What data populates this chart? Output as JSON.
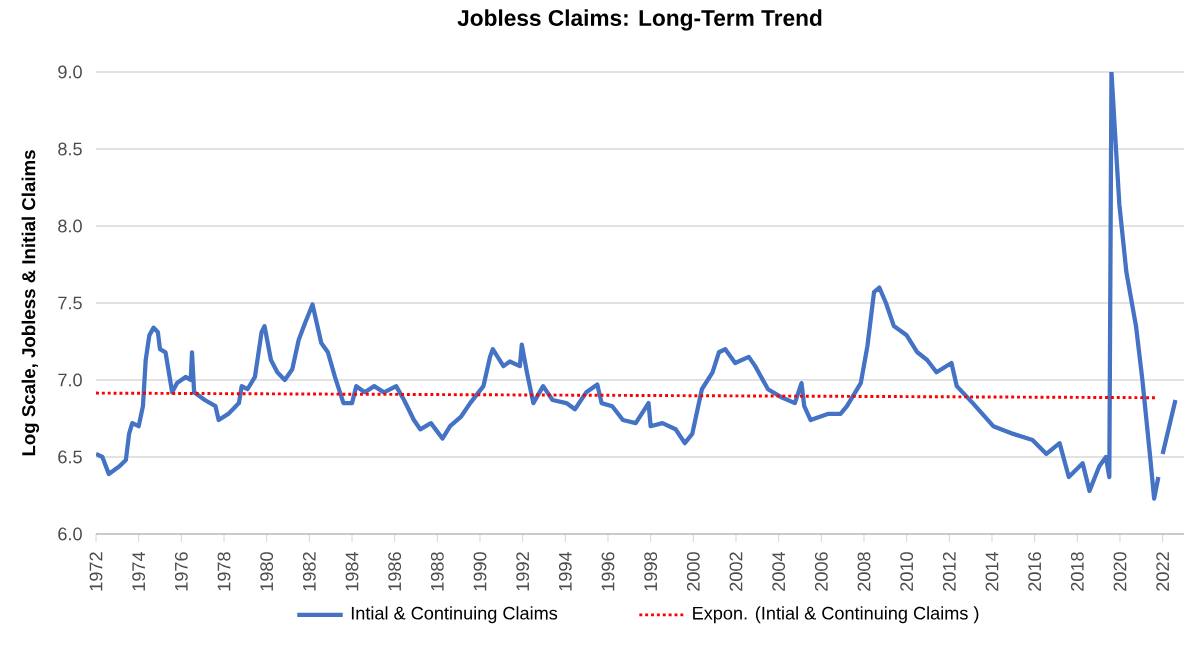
{
  "chart_data": {
    "type": "line",
    "title": "Jobless Claims: Long-Term Trend",
    "ylabel": "Log Scale, Jobless & Initial Claims",
    "xlim": [
      1972,
      2023
    ],
    "xticks": [
      1972,
      1974,
      1976,
      1978,
      1980,
      1982,
      1984,
      1986,
      1988,
      1990,
      1992,
      1994,
      1996,
      1998,
      2000,
      2002,
      2004,
      2006,
      2008,
      2010,
      2012,
      2014,
      2016,
      2018,
      2020,
      2022
    ],
    "ylim": [
      6.0,
      9.0
    ],
    "yticks": [
      {
        "value": 6.0,
        "label": "6.0"
      },
      {
        "value": 6.5,
        "label": "6.5"
      },
      {
        "value": 7.0,
        "label": "7.0"
      },
      {
        "value": 7.5,
        "label": "7.5"
      },
      {
        "value": 8.0,
        "label": "8.0"
      },
      {
        "value": 8.5,
        "label": "8.5"
      },
      {
        "value": 9.0,
        "label": "9.0"
      }
    ],
    "grid": "y",
    "legend": "bottom",
    "marker": "none",
    "series": [
      {
        "name": "Intial & Continuing Claims",
        "color": "#4472c4",
        "line_style": "solid",
        "x": [
          1972.0,
          1972.3,
          1972.6,
          1973.1,
          1973.4,
          1973.55,
          1973.7,
          1974.0,
          1974.2,
          1974.33,
          1974.5,
          1974.7,
          1974.9,
          1975.0,
          1975.26,
          1975.57,
          1975.8,
          1976.2,
          1976.44,
          1976.5,
          1976.6,
          1977.1,
          1977.6,
          1977.75,
          1978.2,
          1978.7,
          1978.83,
          1979.1,
          1979.45,
          1979.76,
          1979.9,
          1980.2,
          1980.5,
          1980.85,
          1981.2,
          1981.5,
          1981.8,
          1982.15,
          1982.56,
          1982.87,
          1983.2,
          1983.6,
          1984.0,
          1984.2,
          1984.6,
          1985.04,
          1985.5,
          1986.07,
          1986.44,
          1986.9,
          1987.2,
          1987.7,
          1988.24,
          1988.6,
          1989.1,
          1989.54,
          1990.16,
          1990.47,
          1990.6,
          1991.1,
          1991.4,
          1991.87,
          1991.96,
          1992.2,
          1992.5,
          1992.96,
          1993.4,
          1994.05,
          1994.45,
          1994.98,
          1995.5,
          1995.7,
          1996.2,
          1996.7,
          1997.3,
          1997.9,
          1998.0,
          1998.55,
          1999.17,
          1999.6,
          1999.95,
          2000.4,
          2000.9,
          2001.2,
          2001.5,
          2001.96,
          2002.6,
          2002.9,
          2003.5,
          2004.1,
          2004.76,
          2005.07,
          2005.2,
          2005.5,
          2006.3,
          2006.9,
          2007.2,
          2007.85,
          2008.16,
          2008.47,
          2008.72,
          2009.03,
          2009.4,
          2010.0,
          2010.5,
          2010.96,
          2011.4,
          2012.1,
          2012.35,
          2013.1,
          2014.06,
          2015.0,
          2015.9,
          2016.55,
          2017.17,
          2017.6,
          2018.25,
          2018.57,
          2019.03,
          2019.34,
          2019.5,
          2019.6,
          2019.8,
          2019.97,
          2020.3,
          2020.75,
          2021.05,
          2021.4,
          2021.6,
          2021.8,
          2021.9,
          2022.0,
          2022.6
        ],
        "values": [
          6.52,
          6.5,
          6.39,
          6.44,
          6.48,
          6.65,
          6.72,
          6.7,
          6.83,
          7.13,
          7.29,
          7.34,
          7.31,
          7.2,
          7.18,
          6.92,
          6.98,
          7.02,
          7.0,
          7.18,
          6.92,
          6.87,
          6.83,
          6.74,
          6.78,
          6.85,
          6.96,
          6.94,
          7.02,
          7.31,
          7.35,
          7.13,
          7.05,
          7.0,
          7.07,
          7.26,
          7.37,
          7.49,
          7.24,
          7.18,
          7.02,
          6.85,
          6.85,
          6.96,
          6.92,
          6.96,
          6.92,
          6.96,
          6.87,
          6.74,
          6.68,
          6.72,
          6.62,
          6.7,
          6.76,
          6.85,
          6.96,
          7.15,
          7.2,
          7.09,
          7.12,
          7.09,
          7.23,
          7.05,
          6.85,
          6.96,
          6.87,
          6.85,
          6.81,
          6.92,
          6.97,
          6.85,
          6.83,
          6.74,
          6.72,
          6.85,
          6.7,
          6.72,
          6.68,
          6.59,
          6.65,
          6.94,
          7.05,
          7.18,
          7.2,
          7.11,
          7.15,
          7.09,
          6.94,
          6.89,
          6.85,
          6.98,
          6.83,
          6.74,
          6.78,
          6.78,
          6.83,
          6.98,
          7.22,
          7.57,
          7.6,
          7.5,
          7.35,
          7.29,
          7.18,
          7.13,
          7.05,
          7.11,
          6.96,
          6.85,
          6.7,
          6.65,
          6.61,
          6.52,
          6.59,
          6.37,
          6.46,
          6.28,
          6.44,
          6.5,
          6.37,
          9.0,
          8.53,
          8.14,
          7.7,
          7.35,
          7.0,
          6.52,
          6.23,
          6.37,
          null,
          6.52,
          6.87
        ]
      },
      {
        "name": "Expon. (Intial & Continuing Claims )",
        "type": "line",
        "color": "#ff0000",
        "line_style": "dotted",
        "x": [
          1972.0,
          2021.7
        ],
        "values": [
          6.915,
          6.885
        ]
      }
    ]
  }
}
